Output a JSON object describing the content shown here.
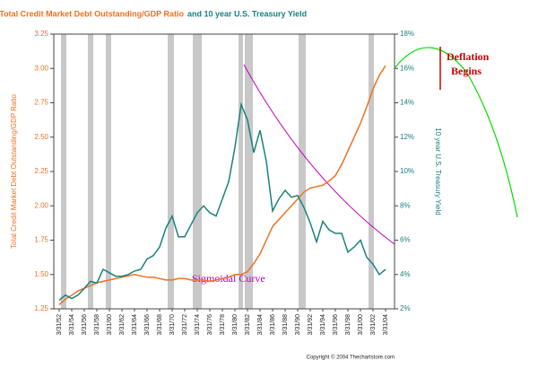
{
  "chart_data": {
    "type": "line",
    "title": "Total Credit Market Debt Outstanding/GDP Ratio",
    "subtitle": "and 10 year U.S. Treasury Yield",
    "y_label": "Total Credit Market Debt Outstanding/GDP Ratio",
    "y2_label": "10 year U.S. Treasury Yield",
    "annotations": [
      "Sigmoidal Curve",
      "Deflation",
      "Begins",
      "Copyright © 2004 Thechartstore.com"
    ],
    "categories": [
      "3/31/52",
      null,
      "3/31/54",
      null,
      "3/31/56",
      null,
      "3/31/58",
      null,
      "3/31/60",
      null,
      "3/31/62",
      null,
      "3/31/64",
      null,
      "3/31/66",
      null,
      "3/31/68",
      null,
      "3/31/70",
      null,
      "3/31/72",
      null,
      "3/31/74",
      null,
      "3/31/76",
      null,
      "3/31/78",
      null,
      "3/31/80",
      null,
      "3/31/82",
      null,
      "3/31/84",
      null,
      "3/31/86",
      null,
      "3/31/88",
      null,
      "3/31/90",
      null,
      "3/31/92",
      null,
      "3/31/94",
      null,
      "3/31/96",
      null,
      "3/31/98",
      null,
      "3/31/00",
      null,
      "3/31/02",
      null,
      "3/31/04"
    ],
    "series": [
      {
        "name": "Total Credit Market Debt Outstanding/GDP Ratio",
        "color": "#f07020",
        "axis": "y",
        "values": [
          1.28,
          1.32,
          1.35,
          1.38,
          1.4,
          1.42,
          1.44,
          1.45,
          1.46,
          1.47,
          1.48,
          1.49,
          1.5,
          1.49,
          1.48,
          1.48,
          1.47,
          1.46,
          1.46,
          1.47,
          1.47,
          1.46,
          1.46,
          1.46,
          1.45,
          1.46,
          1.47,
          1.48,
          1.5,
          1.5,
          1.52,
          1.58,
          1.65,
          1.75,
          1.85,
          1.9,
          1.95,
          2.0,
          2.05,
          2.1,
          2.13,
          2.14,
          2.15,
          2.18,
          2.22,
          2.3,
          2.4,
          2.5,
          2.6,
          2.72,
          2.85,
          2.95,
          3.02
        ]
      },
      {
        "name": "10 year U.S. Treasury Yield",
        "color": "#1a8080",
        "axis": "y2",
        "values": [
          2.5,
          2.8,
          2.6,
          2.8,
          3.2,
          3.6,
          3.5,
          4.3,
          4.1,
          3.9,
          3.9,
          4.0,
          4.2,
          4.3,
          4.9,
          5.1,
          5.6,
          6.7,
          7.4,
          6.2,
          6.2,
          6.9,
          7.6,
          8.0,
          7.6,
          7.4,
          8.4,
          9.4,
          11.4,
          13.9,
          13.0,
          11.1,
          12.4,
          10.6,
          7.7,
          8.4,
          8.9,
          8.5,
          8.6,
          7.9,
          7.0,
          5.9,
          7.1,
          6.6,
          6.4,
          6.4,
          5.3,
          5.6,
          6.0,
          5.0,
          4.6,
          4.0,
          4.3
        ]
      }
    ],
    "ylim": [
      1.25,
      3.25
    ],
    "yticks": [
      1.25,
      {
        "value": 1.5,
        "label": "1.50"
      },
      1.75,
      {
        "value": 2,
        "label": "2.00"
      },
      2.25,
      {
        "value": 2.5,
        "label": "2.50"
      },
      2.75,
      {
        "value": 3,
        "label": "3.00"
      },
      3.25
    ],
    "y2lim": [
      2,
      18
    ],
    "y2ticks": [
      {
        "value": 2,
        "label": "2%"
      },
      {
        "value": 4,
        "label": "4%"
      },
      {
        "value": 6,
        "label": "6%"
      },
      {
        "value": 8,
        "label": "8%"
      },
      {
        "value": 10,
        "label": "10%"
      },
      {
        "value": 12,
        "label": "12%"
      },
      {
        "value": 14,
        "label": "14%"
      },
      {
        "value": 16,
        "label": "16%"
      },
      {
        "value": 18,
        "label": "18%"
      }
    ],
    "grid": false
  }
}
